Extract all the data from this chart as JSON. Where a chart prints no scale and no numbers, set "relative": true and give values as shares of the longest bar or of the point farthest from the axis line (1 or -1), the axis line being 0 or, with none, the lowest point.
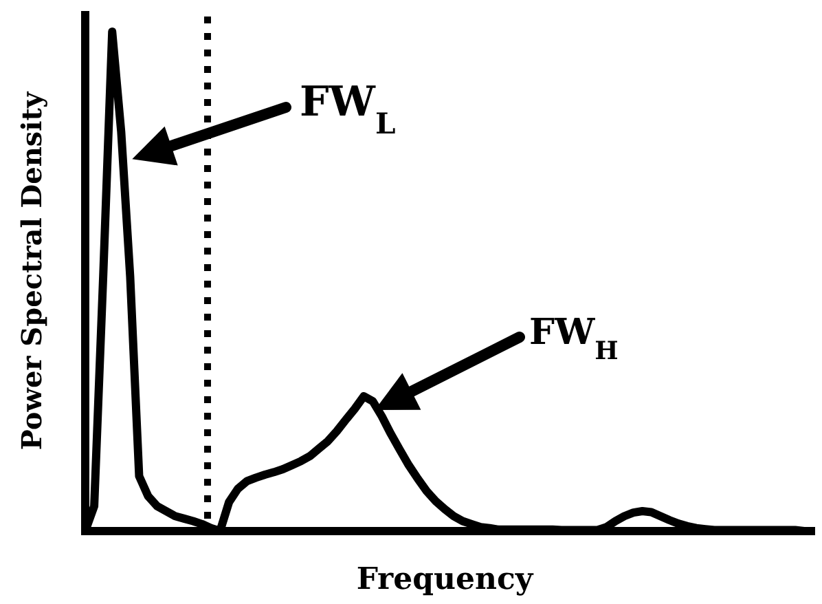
{
  "chart_data": {
    "type": "line",
    "relative": true,
    "xlabel": "Frequency",
    "ylabel": "Power Spectral Density",
    "categories": [
      null,
      null,
      null,
      null,
      null,
      null,
      null,
      null,
      null,
      null,
      null,
      null,
      null,
      null,
      null,
      null,
      null,
      null,
      null,
      null,
      null,
      null,
      null,
      null,
      null,
      null,
      null,
      null,
      null,
      null,
      null,
      null,
      null,
      null,
      null,
      null,
      null,
      null,
      null,
      null,
      null,
      null,
      null,
      null,
      null,
      null,
      null,
      null,
      null,
      null,
      null,
      null,
      null,
      null,
      null,
      null,
      null,
      null,
      null,
      null,
      null,
      null,
      null,
      null,
      null,
      null,
      null,
      null,
      null,
      null,
      null,
      null,
      null,
      null,
      null,
      null,
      null,
      null,
      null,
      null,
      null
    ],
    "series": [
      {
        "color": "#000000",
        "values": [
          0,
          0.05,
          0.51,
          1,
          0.8,
          0.51,
          0.11,
          0.07,
          0.05,
          0.04,
          0.03,
          0.025,
          0.02,
          0.014,
          0.006,
          0,
          0.058,
          0.085,
          0.1,
          0.107,
          0.113,
          0.118,
          0.124,
          0.132,
          0.14,
          0.15,
          0.165,
          0.18,
          0.2,
          0.223,
          0.245,
          0.27,
          0.26,
          0.23,
          0.195,
          0.163,
          0.132,
          0.105,
          0.08,
          0.06,
          0.044,
          0.03,
          0.02,
          0.014,
          0.008,
          0.006,
          0.003,
          0.003,
          0.003,
          0.003,
          0.003,
          0.003,
          0.003,
          0.002,
          0.002,
          0.002,
          0.002,
          0.002,
          0.008,
          0.02,
          0.03,
          0.037,
          0.04,
          0.038,
          0.03,
          0.022,
          0.015,
          0.01,
          0.006,
          0.004,
          0.002,
          0.002,
          0.002,
          0.002,
          0.002,
          0.002,
          0.002,
          0.002,
          0.002,
          0.002,
          0
        ]
      }
    ],
    "annotations": [
      "FW$_{L}$",
      "FW$_{H}$"
    ],
    "marker": "none",
    "line_style": "solid"
  }
}
